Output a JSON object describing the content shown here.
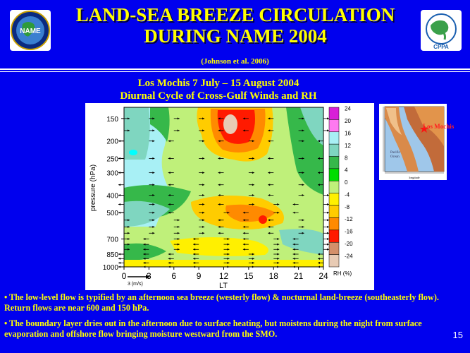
{
  "header": {
    "title_line1": "LAND-SEA BREEZE CIRCULATION",
    "title_line2": "DURING NAME 2004",
    "citation": "(Johnson et al. 2006)"
  },
  "subtitle": {
    "line1": "Los Mochis 7 July – 15 August 2004",
    "line2": "Diurnal Cycle of Cross-Gulf Winds and RH"
  },
  "logos": {
    "left_name": "NAME",
    "right_name": "CPPA"
  },
  "map": {
    "place_label": "Los Mochis"
  },
  "chart_data": {
    "type": "heatmap",
    "xlabel": "LT",
    "ylabel": "pressure (hPa)",
    "x_ticks": [
      "0",
      "3",
      "6",
      "9",
      "12",
      "15",
      "18",
      "21",
      "24"
    ],
    "y_ticks": [
      "150",
      "200",
      "250",
      "300",
      "400",
      "500",
      "700",
      "850",
      "1000"
    ],
    "y_scale": "log-pressure",
    "ylim": [
      1000,
      130
    ],
    "xlim": [
      0,
      24
    ],
    "wind_reference": "3 (m/s)",
    "colorbar": {
      "label": "RH (%)",
      "ticks": [
        "24",
        "20",
        "16",
        "12",
        "8",
        "4",
        "0",
        "-4",
        "-8",
        "-12",
        "-16",
        "-20",
        "-24"
      ],
      "colors": [
        "#d81fd8",
        "#ff7af0",
        "#a8f0f5",
        "#7fd6c0",
        "#36b84a",
        "#00dd00",
        "#bff07a",
        "#fff000",
        "#ffcc00",
        "#ff8a00",
        "#ff1a00",
        "#d4906a",
        "#e8cbb4"
      ]
    }
  },
  "bullets": [
    "• The low-level flow is typified by an afternoon sea breeze (westerly flow) & nocturnal land-breeze (southeasterly flow).  Return flows are near 600 and 150 hPa.",
    "• The boundary layer dries out in the afternoon due to surface heating, but moistens during the night from surface evaporation and offshore flow bringing moisture westward from the SMO."
  ],
  "page_number": "15"
}
